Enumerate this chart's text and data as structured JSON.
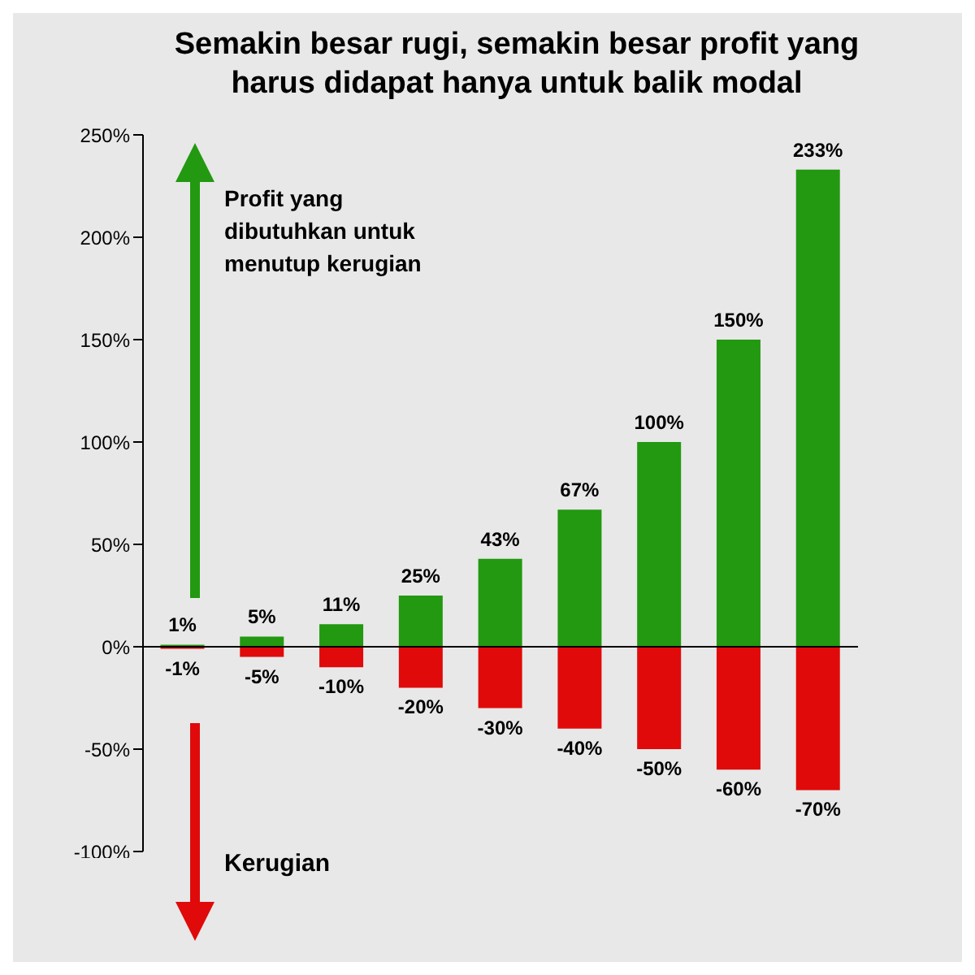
{
  "chart_data": {
    "type": "bar",
    "title": "Semakin besar rugi, semakin besar profit yang harus didapat hanya untuk balik modal",
    "categories": [
      null,
      null,
      null,
      null,
      null,
      null,
      null,
      null,
      null
    ],
    "stacked": true,
    "series": [
      {
        "color": "#229910",
        "values": [
          1,
          5,
          11,
          25,
          43,
          67,
          100,
          150,
          233
        ],
        "value_labels": [
          "1%",
          "5%",
          "11%",
          "25%",
          "43%",
          "67%",
          "100%",
          "150%",
          "233%"
        ]
      },
      {
        "color": "#e00a0a",
        "values": [
          -1,
          -5,
          -10,
          -20,
          -30,
          -40,
          -50,
          -60,
          -70
        ],
        "value_labels": [
          "-1%",
          "-5%",
          "-10%",
          "-20%",
          "-30%",
          "-40%",
          "-50%",
          "-60%",
          "-70%"
        ]
      }
    ],
    "ylim": [
      -100,
      250
    ],
    "yticks": [
      {
        "value": -100,
        "label": "-100%"
      },
      {
        "value": -50,
        "label": "-50%"
      },
      {
        "value": 0,
        "label": "0%"
      },
      {
        "value": 50,
        "label": "50%"
      },
      {
        "value": 100,
        "label": "100%"
      },
      {
        "value": 150,
        "label": "150%"
      },
      {
        "value": 200,
        "label": "200%"
      },
      {
        "value": 250,
        "label": "250%"
      }
    ],
    "annotations": [
      "Profit yang dibutuhkan untuk menutup kerugian",
      "Kerugian"
    ],
    "legend": false
  }
}
